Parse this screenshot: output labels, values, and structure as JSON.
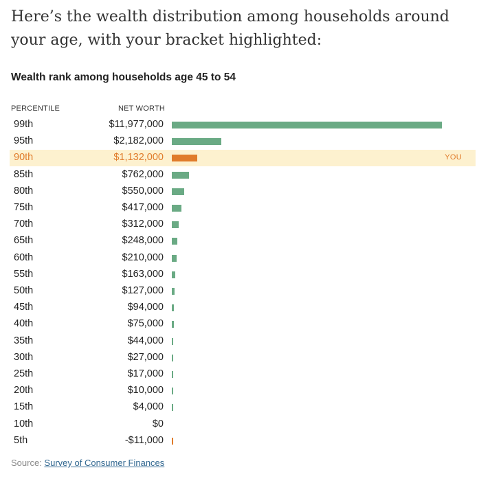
{
  "intro_text": "Here’s the wealth distribution among households around your age, with your bracket highlighted:",
  "chart_data": {
    "type": "bar",
    "orientation": "horizontal",
    "title": "Wealth rank among households age 45 to 54",
    "column_headers": {
      "percentile": "PERCENTILE",
      "net_worth": "NET WORTH"
    },
    "categories": [
      "99th",
      "95th",
      "90th",
      "85th",
      "80th",
      "75th",
      "70th",
      "65th",
      "60th",
      "55th",
      "50th",
      "45th",
      "40th",
      "35th",
      "30th",
      "25th",
      "20th",
      "15th",
      "10th",
      "5th"
    ],
    "value_labels": [
      "$11,977,000",
      "$2,182,000",
      "$1,132,000",
      "$762,000",
      "$550,000",
      "$417,000",
      "$312,000",
      "$248,000",
      "$210,000",
      "$163,000",
      "$127,000",
      "$94,000",
      "$75,000",
      "$44,000",
      "$27,000",
      "$17,000",
      "$10,000",
      "$4,000",
      "$0",
      "-$11,000"
    ],
    "values": [
      11977000,
      2182000,
      1132000,
      762000,
      550000,
      417000,
      312000,
      248000,
      210000,
      163000,
      127000,
      94000,
      75000,
      44000,
      27000,
      17000,
      10000,
      4000,
      0,
      -11000
    ],
    "highlight_index": 2,
    "highlight_label": "YOU",
    "colors": {
      "bar": "#6aaa84",
      "highlight": "#e07b2a",
      "highlight_bg": "#fdf1cf",
      "negative": "#e07b2a"
    }
  },
  "source": {
    "prefix": "Source: ",
    "link_text": "Survey of Consumer Finances"
  }
}
